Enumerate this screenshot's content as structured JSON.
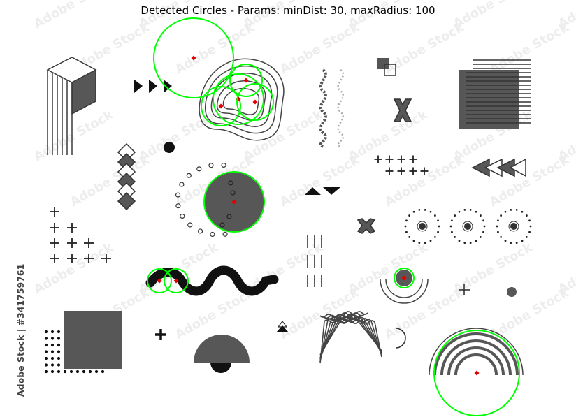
{
  "figure": {
    "title": "Detected Circles - Params: minDist: 30, maxRadius: 100",
    "watermark_text": "Adobe Stock",
    "credit": "Adobe Stock | #341759761"
  },
  "detections": {
    "circle_color": "#00ff00",
    "center_color": "#e00000",
    "count": 9
  },
  "colors": {
    "shape_fill": "#575757",
    "shape_stroke": "#3a3a3a",
    "black": "#111111"
  },
  "icons": [
    "isometric-box-icon",
    "play-triangles-icon",
    "wavy-contour-blob-icon",
    "dna-helix-icon",
    "overlapping-squares-icon",
    "x-cross-icon",
    "striped-square-icon",
    "diamond-stack-icon",
    "dot-circle-icon",
    "plus-grid-icon",
    "arrow-triangles-icon",
    "filled-circle-icon",
    "triangle-pair-icon",
    "vertical-lines-icon",
    "target-dots-icon",
    "wave-line-icon",
    "semicircle-ring-icon",
    "dot-grid-icon",
    "plus-icon",
    "small-triangle-icon",
    "zigzag-x-icon",
    "arc-icon",
    "half-circle-icon",
    "rainbow-arcs-icon"
  ]
}
